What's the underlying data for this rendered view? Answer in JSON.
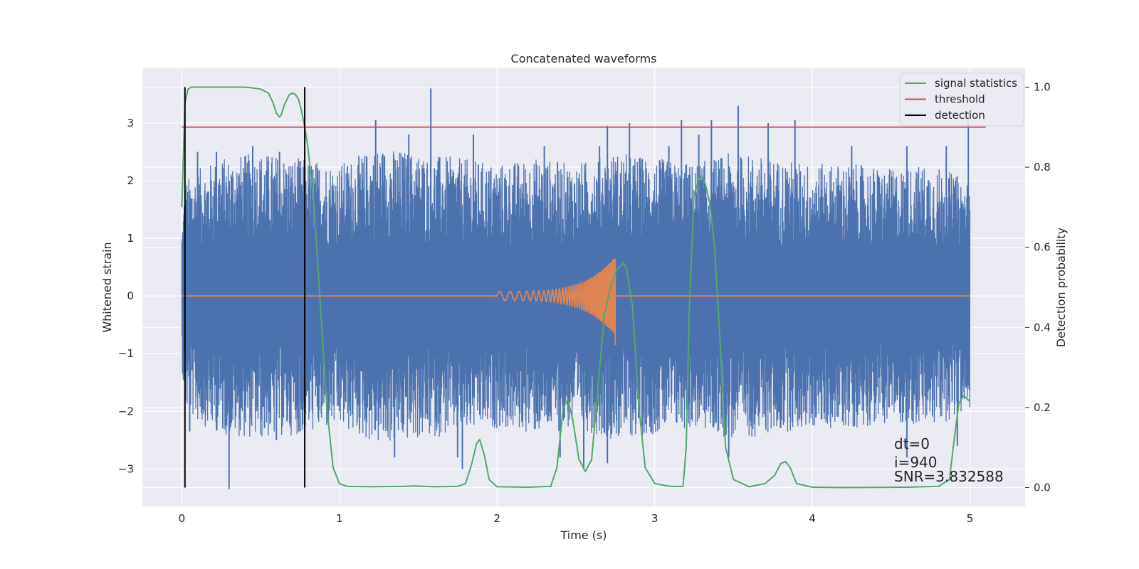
{
  "chart_data": {
    "type": "line",
    "title": "Concatenated waveforms",
    "xlabel": "Time (s)",
    "ylabel": "Whitened strain",
    "ylabel_right": "Detection probability",
    "xlim": [
      -0.25,
      5.35
    ],
    "ylim": [
      -3.65,
      3.95
    ],
    "ylim_right": [
      -0.047,
      1.047
    ],
    "x_ticks": [
      0,
      1,
      2,
      3,
      4,
      5
    ],
    "y_ticks": [
      -3,
      -2,
      -1,
      0,
      1,
      2,
      3
    ],
    "y_ticks_right": [
      0.0,
      0.2,
      0.4,
      0.6,
      0.8,
      1.0
    ],
    "y_tick_labels": [
      "−3",
      "−2",
      "−1",
      "0",
      "1",
      "2",
      "3"
    ],
    "y_tick_labels_right": [
      "0.0",
      "0.2",
      "0.4",
      "0.6",
      "0.8",
      "1.0"
    ],
    "grid": true,
    "legend_position": "top-right",
    "colors": {
      "noise": "#4c72b0",
      "waveform": "#dd8452",
      "signal_statistics": "#55a868",
      "threshold": "#c44e52",
      "detection": "#000000",
      "background": "#eaeaf2",
      "grid": "#ffffff"
    },
    "series": [
      {
        "name": "",
        "role": "whitened_noise",
        "axis": "left",
        "x_range": [
          0,
          5
        ],
        "envelope": [
          [
            0.0,
            1.2
          ],
          [
            0.02,
            2.0
          ],
          [
            0.1,
            2.2
          ],
          [
            0.25,
            2.4
          ],
          [
            0.5,
            2.5
          ],
          [
            0.75,
            2.4
          ],
          [
            1.0,
            2.3
          ],
          [
            1.25,
            2.6
          ],
          [
            1.5,
            2.5
          ],
          [
            1.75,
            2.4
          ],
          [
            2.0,
            2.3
          ],
          [
            2.25,
            2.4
          ],
          [
            2.5,
            2.3
          ],
          [
            2.75,
            2.5
          ],
          [
            3.0,
            2.4
          ],
          [
            3.25,
            2.3
          ],
          [
            3.5,
            2.5
          ],
          [
            3.75,
            2.4
          ],
          [
            4.0,
            2.3
          ],
          [
            4.25,
            2.3
          ],
          [
            4.5,
            2.2
          ],
          [
            4.75,
            2.3
          ],
          [
            5.0,
            2.0
          ]
        ],
        "spikes_up": [
          [
            0.1,
            2.5
          ],
          [
            0.22,
            2.5
          ],
          [
            0.45,
            2.6
          ],
          [
            0.62,
            2.5
          ],
          [
            1.23,
            3.05
          ],
          [
            1.44,
            2.8
          ],
          [
            1.58,
            3.6
          ],
          [
            1.85,
            2.8
          ],
          [
            2.3,
            2.6
          ],
          [
            2.65,
            2.6
          ],
          [
            2.7,
            2.95
          ],
          [
            2.84,
            3.0
          ],
          [
            3.09,
            2.6
          ],
          [
            3.17,
            3.05
          ],
          [
            3.28,
            2.8
          ],
          [
            3.36,
            3.05
          ],
          [
            3.53,
            3.3
          ],
          [
            3.72,
            3.0
          ],
          [
            3.89,
            3.05
          ],
          [
            4.25,
            2.6
          ],
          [
            4.6,
            2.6
          ],
          [
            4.85,
            2.6
          ],
          [
            4.99,
            3.2
          ]
        ],
        "spikes_down": [
          [
            0.05,
            -2.35
          ],
          [
            0.3,
            -3.35
          ],
          [
            0.6,
            -2.5
          ],
          [
            0.75,
            -2.35
          ],
          [
            1.35,
            -2.8
          ],
          [
            1.75,
            -2.8
          ],
          [
            1.78,
            -3.0
          ],
          [
            2.4,
            -2.8
          ],
          [
            2.55,
            -3.0
          ],
          [
            2.7,
            -2.9
          ],
          [
            3.47,
            -2.8
          ],
          [
            4.6,
            -2.8
          ],
          [
            4.92,
            -2.6
          ]
        ]
      },
      {
        "name": "",
        "role": "injected_waveform",
        "axis": "left",
        "x": [
          0.0,
          2.0,
          2.75,
          5.0
        ],
        "chirp_start": 2.0,
        "chirp_end": 2.75,
        "chirp_peak_amplitude": [
          0.65,
          -0.85
        ]
      },
      {
        "name": "signal statistics",
        "axis": "right",
        "x": [
          0.0,
          0.02,
          0.04,
          0.06,
          0.08,
          0.1,
          0.15,
          0.2,
          0.3,
          0.4,
          0.45,
          0.5,
          0.55,
          0.58,
          0.6,
          0.62,
          0.63,
          0.65,
          0.68,
          0.7,
          0.72,
          0.74,
          0.76,
          0.78,
          0.8,
          0.84,
          0.88,
          0.92,
          0.96,
          1.0,
          1.05,
          1.2,
          1.4,
          1.48,
          1.6,
          1.75,
          1.8,
          1.84,
          1.87,
          1.89,
          1.92,
          1.95,
          2.0,
          2.2,
          2.34,
          2.38,
          2.42,
          2.45,
          2.48,
          2.52,
          2.56,
          2.6,
          2.64,
          2.68,
          2.72,
          2.76,
          2.8,
          2.82,
          2.86,
          2.9,
          2.94,
          3.0,
          3.1,
          3.18,
          3.2,
          3.22,
          3.25,
          3.28,
          3.3,
          3.32,
          3.35,
          3.38,
          3.41,
          3.45,
          3.5,
          3.6,
          3.7,
          3.76,
          3.8,
          3.83,
          3.86,
          3.9,
          4.0,
          4.2,
          4.6,
          4.8,
          4.87,
          4.9,
          4.93,
          4.96,
          5.0
        ],
        "values": [
          0.7,
          0.96,
          0.995,
          1.0,
          1.0,
          1.0,
          1.0,
          1.0,
          1.0,
          1.0,
          0.998,
          0.995,
          0.985,
          0.96,
          0.935,
          0.925,
          0.93,
          0.955,
          0.98,
          0.985,
          0.982,
          0.97,
          0.94,
          0.9,
          0.85,
          0.7,
          0.45,
          0.2,
          0.05,
          0.01,
          0.003,
          0.002,
          0.003,
          0.004,
          0.002,
          0.003,
          0.01,
          0.06,
          0.11,
          0.12,
          0.08,
          0.02,
          0.002,
          0.001,
          0.003,
          0.05,
          0.2,
          0.22,
          0.17,
          0.07,
          0.04,
          0.07,
          0.25,
          0.43,
          0.5,
          0.545,
          0.56,
          0.55,
          0.45,
          0.2,
          0.05,
          0.01,
          0.003,
          0.003,
          0.1,
          0.45,
          0.73,
          0.77,
          0.775,
          0.76,
          0.71,
          0.6,
          0.4,
          0.1,
          0.02,
          0.002,
          0.01,
          0.03,
          0.06,
          0.065,
          0.05,
          0.01,
          0.001,
          0.0,
          0.001,
          0.003,
          0.02,
          0.12,
          0.21,
          0.23,
          0.215
        ]
      },
      {
        "name": "threshold",
        "axis": "right",
        "x": [
          0.0,
          5.1
        ],
        "values": [
          0.9,
          0.9
        ]
      },
      {
        "name": "detection",
        "axis": "right",
        "x": [
          0.02,
          0.78
        ],
        "values": [
          1.0,
          1.0
        ],
        "type": "vertical_lines"
      }
    ],
    "annotations": [
      "dt=0",
      "i=940",
      "SNR=3.832588"
    ]
  }
}
